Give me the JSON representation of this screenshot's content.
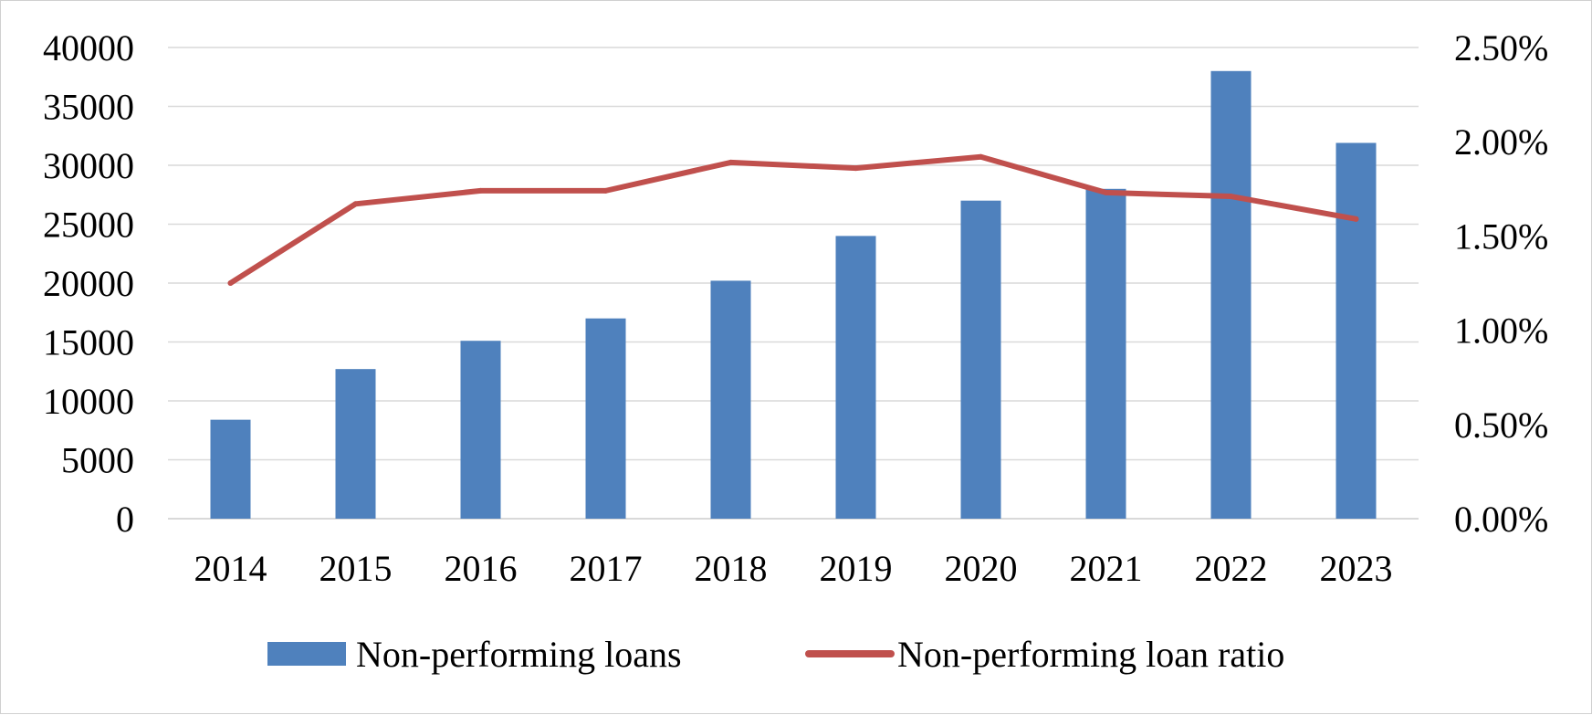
{
  "chart_data": {
    "type": "bar",
    "categories": [
      "2014",
      "2015",
      "2016",
      "2017",
      "2018",
      "2019",
      "2020",
      "2021",
      "2022",
      "2023"
    ],
    "series": [
      {
        "name": "Non-performing loans",
        "type": "bar",
        "axis": "left",
        "values": [
          8400,
          12700,
          15100,
          17000,
          20200,
          24000,
          27000,
          28000,
          38000,
          31900
        ]
      },
      {
        "name": "Non-performing loan ratio",
        "type": "line",
        "axis": "right",
        "values": [
          1.25,
          1.67,
          1.74,
          1.74,
          1.89,
          1.86,
          1.92,
          1.73,
          1.71,
          1.59
        ]
      }
    ],
    "y_left": {
      "ylim": [
        0,
        40000
      ],
      "ticks": [
        "0",
        "5000",
        "10000",
        "15000",
        "20000",
        "25000",
        "30000",
        "35000",
        "40000"
      ]
    },
    "y_right": {
      "ylim": [
        0,
        2.5
      ],
      "ticks": [
        "0.00%",
        "0.50%",
        "1.00%",
        "1.50%",
        "2.00%",
        "2.50%"
      ]
    },
    "title": "",
    "xlabel": "",
    "ylabel": "",
    "grid": true,
    "legend": "bottom",
    "colors": {
      "bar": "#4f81bd",
      "line": "#c0504d",
      "grid": "#d9d9d9"
    }
  }
}
